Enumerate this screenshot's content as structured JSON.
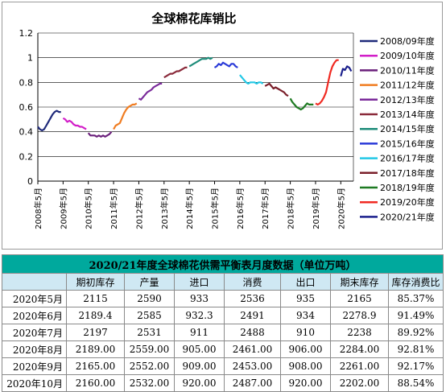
{
  "chart_data": {
    "type": "line",
    "title": "全球棉花库销比",
    "ylim": [
      0,
      1.2
    ],
    "yticks": [
      "0",
      "0.2",
      "0.4",
      "0.6",
      "0.8",
      "1",
      "1.2"
    ],
    "xticks": [
      "2008年5月",
      "2009年5月",
      "2010年5月",
      "2011年5月",
      "2012年5月",
      "2013年5月",
      "2014年5月",
      "2015年5月",
      "2016年5月",
      "2017年5月",
      "2018年5月",
      "2019年5月",
      "2020年5月"
    ],
    "x_start": "2008-05",
    "series": [
      {
        "name": "2008/09年度",
        "color": "#1f2a7a",
        "values": [
          0.44,
          0.42,
          0.41,
          0.42,
          0.45,
          0.48,
          0.51,
          0.54,
          0.56,
          0.57,
          0.56,
          0.56
        ]
      },
      {
        "name": "2009/10年度",
        "color": "#d21ec8",
        "values": [
          0.51,
          0.5,
          0.48,
          0.49,
          0.48,
          0.46,
          0.45,
          0.45,
          0.44,
          0.44,
          0.43,
          0.42
        ]
      },
      {
        "name": "2010/11年度",
        "color": "#6a1f7a",
        "values": [
          0.39,
          0.37,
          0.37,
          0.37,
          0.36,
          0.37,
          0.36,
          0.37,
          0.36,
          0.37,
          0.38,
          0.4
        ]
      },
      {
        "name": "2011/12年度",
        "color": "#f07d22",
        "values": [
          0.42,
          0.45,
          0.46,
          0.47,
          0.51,
          0.55,
          0.58,
          0.6,
          0.61,
          0.62,
          0.62,
          0.63
        ]
      },
      {
        "name": "2012/13年度",
        "color": "#7a2a9a",
        "values": [
          0.67,
          0.66,
          0.68,
          0.7,
          0.72,
          0.73,
          0.74,
          0.76,
          0.77,
          0.78,
          0.79,
          0.79
        ]
      },
      {
        "name": "2013/14年度",
        "color": "#8a2a3a",
        "values": [
          0.84,
          0.85,
          0.86,
          0.87,
          0.87,
          0.88,
          0.89,
          0.89,
          0.9,
          0.91,
          0.92,
          0.92
        ]
      },
      {
        "name": "2014/15年度",
        "color": "#1e8c7a",
        "values": [
          0.93,
          0.94,
          0.95,
          0.96,
          0.97,
          0.98,
          0.99,
          0.99,
          0.99,
          1.0,
          0.99,
          1.0
        ]
      },
      {
        "name": "2015/16年度",
        "color": "#2a3ad8",
        "values": [
          0.92,
          0.93,
          0.95,
          0.94,
          0.96,
          0.95,
          0.94,
          0.93,
          0.95,
          0.95,
          0.93,
          0.92
        ]
      },
      {
        "name": "2016/17年度",
        "color": "#22c8e6",
        "values": [
          0.86,
          0.84,
          0.82,
          0.8,
          0.79,
          0.8,
          0.8,
          0.8,
          0.79,
          0.8,
          0.8,
          0.79
        ]
      },
      {
        "name": "2017/18年度",
        "color": "#7a1f2a",
        "values": [
          0.77,
          0.78,
          0.79,
          0.77,
          0.75,
          0.76,
          0.75,
          0.74,
          0.73,
          0.72,
          0.7,
          0.69
        ]
      },
      {
        "name": "2018/19年度",
        "color": "#1e7a22",
        "values": [
          0.67,
          0.64,
          0.62,
          0.6,
          0.59,
          0.58,
          0.59,
          0.61,
          0.63,
          0.62,
          0.62,
          0.62
        ]
      },
      {
        "name": "2019/20年度",
        "color": "#f02a22",
        "values": [
          0.63,
          0.62,
          0.63,
          0.65,
          0.68,
          0.72,
          0.8,
          0.88,
          0.93,
          0.96,
          0.98,
          0.98
        ]
      },
      {
        "name": "2020/21年度",
        "color": "#1a1f8c",
        "values": [
          0.85,
          0.91,
          0.9,
          0.93,
          0.92,
          0.89
        ]
      }
    ]
  },
  "table": {
    "title": "2020/21年度全球棉花供需平衡表月度数据（单位万吨）",
    "headers": [
      "",
      "期初库存",
      "产量",
      "进口",
      "消费",
      "出口",
      "期末库存",
      "库存消费比"
    ],
    "rows": [
      [
        "2020年5月",
        "2115",
        "2590",
        "933",
        "2536",
        "935",
        "2165",
        "85.37%"
      ],
      [
        "2020年6月",
        "2189.4",
        "2585",
        "932.3",
        "2491",
        "934",
        "2278.9",
        "91.49%"
      ],
      [
        "2020年7月",
        "2197",
        "2531",
        "911",
        "2488",
        "910",
        "2238",
        "89.92%"
      ],
      [
        "2020年8月",
        "2189.00",
        "2559.00",
        "905.00",
        "2461.00",
        "906.00",
        "2284.00",
        "92.81%"
      ],
      [
        "2020年9月",
        "2165.00",
        "2552.00",
        "909.00",
        "2453.00",
        "908.00",
        "2261.00",
        "92.17%"
      ],
      [
        "2020年10月",
        "2160.00",
        "2532.00",
        "920.00",
        "2487.00",
        "920.00",
        "2202.00",
        "88.54%"
      ]
    ]
  }
}
